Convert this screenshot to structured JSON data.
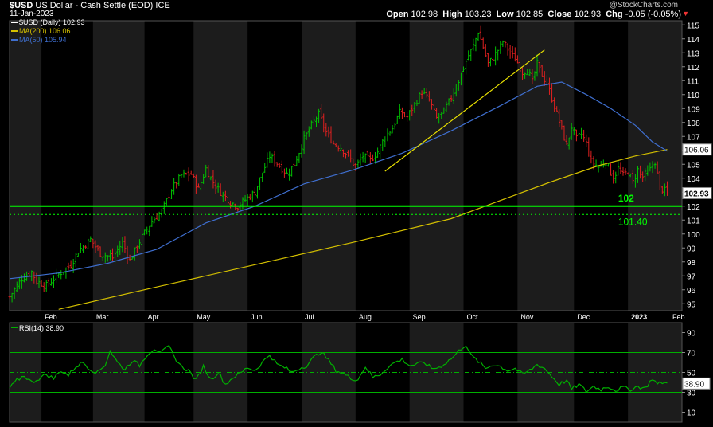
{
  "header": {
    "symbol": "$USD",
    "name": "US Dollar - Cash Settle (EOD)",
    "exchange": "ICE",
    "date": "11-Jan-2023",
    "watermark": "@StockCharts.com",
    "open_label": "Open",
    "open": "102.98",
    "high_label": "High",
    "high": "103.23",
    "low_label": "Low",
    "low": "102.85",
    "close_label": "Close",
    "close": "102.93",
    "chg_label": "Chg",
    "chg": "-0.05 (-0.05%)",
    "chg_arrow": "▼"
  },
  "colors": {
    "background": "#000000",
    "band": "#1c1c1c",
    "up_bar": "#00c000",
    "down_bar": "#e02020",
    "ma200": "#d4c000",
    "ma50": "#3f6fd0",
    "support": "#00ff00",
    "rsi": "#00b000"
  },
  "chart_data": [
    {
      "type": "ohlc",
      "legend": [
        {
          "label": "$USD (Daily) 102.93",
          "color": "#ffffff"
        },
        {
          "label": "MA(200) 106.06",
          "color": "#d4c000"
        },
        {
          "label": "MA(50) 105.94",
          "color": "#3f6fd0"
        }
      ],
      "x_labels": [
        "Feb",
        "Mar",
        "Apr",
        "May",
        "Jun",
        "Jul",
        "Aug",
        "Sep",
        "Oct",
        "Nov",
        "Dec",
        "2023",
        "Feb"
      ],
      "y_ticks": [
        95,
        96,
        97,
        98,
        99,
        100,
        101,
        102,
        103,
        104,
        105,
        106,
        107,
        108,
        109,
        110,
        111,
        112,
        113,
        114,
        115
      ],
      "ylim": [
        94.5,
        115.3
      ],
      "price_series": [
        [
          0,
          95.5
        ],
        [
          5,
          96.8
        ],
        [
          9,
          97.3
        ],
        [
          11,
          96.6
        ],
        [
          15,
          96.3
        ],
        [
          20,
          97.1
        ],
        [
          25,
          97.8
        ],
        [
          28,
          98.8
        ],
        [
          33,
          99.6
        ],
        [
          37,
          98.6
        ],
        [
          42,
          98.3
        ],
        [
          46,
          99.4
        ],
        [
          49,
          98.1
        ],
        [
          54,
          99.8
        ],
        [
          58,
          100.9
        ],
        [
          62,
          101.6
        ],
        [
          66,
          103.2
        ],
        [
          70,
          104.2
        ],
        [
          74,
          104.3
        ],
        [
          77,
          103.2
        ],
        [
          80,
          104.7
        ],
        [
          83,
          103.7
        ],
        [
          86,
          103.0
        ],
        [
          90,
          102.3
        ],
        [
          93,
          102.0
        ],
        [
          97,
          102.6
        ],
        [
          100,
          103.0
        ],
        [
          103,
          104.4
        ],
        [
          106,
          105.6
        ],
        [
          110,
          104.9
        ],
        [
          113,
          104.3
        ],
        [
          116,
          105.0
        ],
        [
          120,
          106.8
        ],
        [
          123,
          107.8
        ],
        [
          126,
          108.6
        ],
        [
          129,
          107.3
        ],
        [
          132,
          106.5
        ],
        [
          135,
          106.2
        ],
        [
          138,
          105.6
        ],
        [
          141,
          104.8
        ],
        [
          144,
          105.6
        ],
        [
          147,
          105.3
        ],
        [
          150,
          105.9
        ],
        [
          153,
          107.0
        ],
        [
          156,
          107.6
        ],
        [
          159,
          108.7
        ],
        [
          162,
          108.4
        ],
        [
          165,
          109.3
        ],
        [
          168,
          110.2
        ],
        [
          171,
          109.6
        ],
        [
          174,
          108.3
        ],
        [
          177,
          108.8
        ],
        [
          180,
          109.8
        ],
        [
          183,
          111.0
        ],
        [
          186,
          112.4
        ],
        [
          189,
          113.5
        ],
        [
          191,
          114.5
        ],
        [
          193,
          113.4
        ],
        [
          195,
          112.2
        ],
        [
          198,
          112.9
        ],
        [
          201,
          113.8
        ],
        [
          204,
          113.0
        ],
        [
          207,
          112.3
        ],
        [
          209,
          111.6
        ],
        [
          211,
          111.8
        ],
        [
          213,
          110.9
        ],
        [
          215,
          112.2
        ],
        [
          217,
          111.4
        ],
        [
          219,
          110.8
        ],
        [
          222,
          109.2
        ],
        [
          225,
          107.5
        ],
        [
          227,
          106.3
        ],
        [
          229,
          107.7
        ],
        [
          231,
          106.8
        ],
        [
          233,
          107.2
        ],
        [
          235,
          106.5
        ],
        [
          237,
          105.2
        ],
        [
          240,
          104.8
        ],
        [
          243,
          105.2
        ],
        [
          246,
          104.0
        ],
        [
          248,
          104.7
        ],
        [
          250,
          104.2
        ],
        [
          252,
          104.5
        ],
        [
          254,
          103.7
        ],
        [
          256,
          104.6
        ],
        [
          258,
          104.1
        ],
        [
          261,
          104.6
        ],
        [
          263,
          105.2
        ],
        [
          265,
          103.3
        ],
        [
          267,
          103.1
        ],
        [
          268,
          102.9
        ]
      ],
      "ma200_series": [
        [
          20,
          94.6
        ],
        [
          60,
          96.2
        ],
        [
          100,
          97.8
        ],
        [
          140,
          99.4
        ],
        [
          180,
          101.1
        ],
        [
          200,
          102.4
        ],
        [
          220,
          103.7
        ],
        [
          240,
          104.9
        ],
        [
          255,
          105.6
        ],
        [
          268,
          106.06
        ]
      ],
      "ma50_series": [
        [
          0,
          96.8
        ],
        [
          20,
          97.2
        ],
        [
          40,
          97.9
        ],
        [
          60,
          98.9
        ],
        [
          80,
          100.8
        ],
        [
          100,
          102.0
        ],
        [
          120,
          103.6
        ],
        [
          140,
          104.6
        ],
        [
          160,
          105.8
        ],
        [
          180,
          107.4
        ],
        [
          200,
          109.2
        ],
        [
          215,
          110.6
        ],
        [
          225,
          110.9
        ],
        [
          235,
          110.0
        ],
        [
          245,
          109.0
        ],
        [
          255,
          107.8
        ],
        [
          262,
          106.6
        ],
        [
          268,
          105.94
        ]
      ],
      "trendline": [
        [
          153,
          104.5
        ],
        [
          218,
          113.2
        ]
      ],
      "support_line": {
        "value": 102,
        "label": "102"
      },
      "secondary_line": {
        "value": 101.4,
        "label": "101.40"
      },
      "last_price_tag": "102.93",
      "ma200_tag": "106.06"
    },
    {
      "type": "line",
      "label": "RSI(14) 38.90",
      "y_ticks": [
        10,
        30,
        50,
        70,
        90
      ],
      "levels": [
        30,
        50,
        70
      ],
      "ylim": [
        0,
        100
      ],
      "last_tag": "38.90",
      "values": [
        [
          0,
          34
        ],
        [
          3,
          42
        ],
        [
          6,
          47
        ],
        [
          9,
          40
        ],
        [
          12,
          44
        ],
        [
          15,
          48
        ],
        [
          18,
          44
        ],
        [
          21,
          52
        ],
        [
          24,
          47
        ],
        [
          27,
          56
        ],
        [
          30,
          60
        ],
        [
          33,
          53
        ],
        [
          36,
          50
        ],
        [
          39,
          58
        ],
        [
          41,
          72
        ],
        [
          44,
          60
        ],
        [
          47,
          53
        ],
        [
          50,
          62
        ],
        [
          53,
          57
        ],
        [
          56,
          68
        ],
        [
          59,
          74
        ],
        [
          62,
          70
        ],
        [
          65,
          76
        ],
        [
          67,
          66
        ],
        [
          70,
          56
        ],
        [
          73,
          52
        ],
        [
          76,
          42
        ],
        [
          79,
          56
        ],
        [
          82,
          43
        ],
        [
          85,
          50
        ],
        [
          88,
          38
        ],
        [
          91,
          45
        ],
        [
          94,
          49
        ],
        [
          97,
          55
        ],
        [
          100,
          52
        ],
        [
          103,
          60
        ],
        [
          106,
          68
        ],
        [
          109,
          58
        ],
        [
          112,
          55
        ],
        [
          115,
          50
        ],
        [
          118,
          54
        ],
        [
          121,
          57
        ],
        [
          124,
          65
        ],
        [
          127,
          71
        ],
        [
          130,
          62
        ],
        [
          133,
          52
        ],
        [
          136,
          49
        ],
        [
          139,
          44
        ],
        [
          142,
          43
        ],
        [
          145,
          56
        ],
        [
          148,
          45
        ],
        [
          151,
          48
        ],
        [
          154,
          55
        ],
        [
          157,
          60
        ],
        [
          160,
          63
        ],
        [
          163,
          57
        ],
        [
          166,
          58
        ],
        [
          169,
          60
        ],
        [
          172,
          54
        ],
        [
          175,
          55
        ],
        [
          178,
          60
        ],
        [
          181,
          66
        ],
        [
          184,
          74
        ],
        [
          186,
          78
        ],
        [
          188,
          67
        ],
        [
          191,
          61
        ],
        [
          194,
          54
        ],
        [
          197,
          58
        ],
        [
          200,
          56
        ],
        [
          203,
          52
        ],
        [
          206,
          54
        ],
        [
          209,
          48
        ],
        [
          212,
          52
        ],
        [
          215,
          58
        ],
        [
          218,
          54
        ],
        [
          221,
          46
        ],
        [
          224,
          38
        ],
        [
          227,
          42
        ],
        [
          229,
          33
        ],
        [
          232,
          38
        ],
        [
          235,
          31
        ],
        [
          238,
          36
        ],
        [
          241,
          33
        ],
        [
          244,
          36
        ],
        [
          247,
          32
        ],
        [
          250,
          35
        ],
        [
          253,
          33
        ],
        [
          256,
          36
        ],
        [
          259,
          34
        ],
        [
          262,
          44
        ],
        [
          264,
          38
        ],
        [
          266,
          40
        ],
        [
          268,
          38.9
        ]
      ]
    }
  ]
}
